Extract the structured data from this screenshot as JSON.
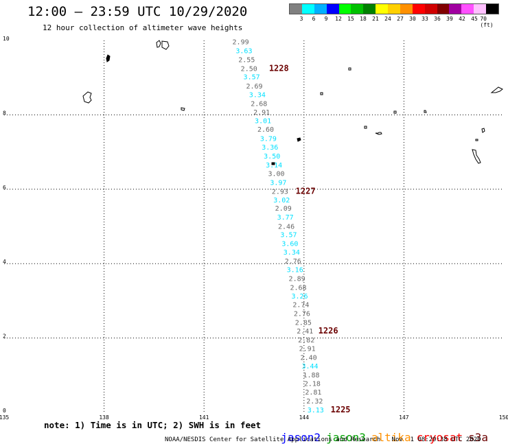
{
  "header": {
    "title": "12:00 – 23:59 UTC 10/29/2020",
    "subtitle": "12 hour collection of altimeter wave heights"
  },
  "legend": {
    "colors": [
      "#808080",
      "#00ffff",
      "#00b0ff",
      "#0000ff",
      "#00ff00",
      "#00c000",
      "#008000",
      "#ffff00",
      "#ffd000",
      "#ff9000",
      "#ff0000",
      "#d00000",
      "#800000",
      "#a000a0",
      "#ff50ff",
      "#ffc0ff",
      "#000000"
    ],
    "labels": [
      "3",
      "6",
      "9",
      "12",
      "15",
      "18",
      "21",
      "24",
      "27",
      "30",
      "33",
      "36",
      "39",
      "42",
      "45",
      "70 (ft)"
    ]
  },
  "map": {
    "x_range": [
      135,
      150
    ],
    "y_range": [
      0,
      10
    ],
    "x_ticks": [
      {
        "value": 135,
        "label": "135"
      },
      {
        "value": 138,
        "label": "138"
      },
      {
        "value": 141,
        "label": "141"
      },
      {
        "value": 144,
        "label": "144"
      },
      {
        "value": 147,
        "label": "147"
      },
      {
        "value": 150,
        "label": "150"
      }
    ],
    "y_ticks": [
      {
        "value": 0,
        "label": "0"
      },
      {
        "value": 2,
        "label": "2"
      },
      {
        "value": 4,
        "label": "4"
      },
      {
        "value": 6,
        "label": "6"
      },
      {
        "value": 8,
        "label": "8"
      },
      {
        "value": 10,
        "label": "10"
      }
    ],
    "series_colors": {
      "jason2": "#0000ff",
      "jason3": "#00a000",
      "altika": "#ff9000",
      "cryosat": "#ff0000",
      "s3a": "#6b0000"
    },
    "observations": [
      {
        "lon": 142.1,
        "lat": 9.9,
        "swh": "2.99",
        "color": "gray"
      },
      {
        "lon": 142.2,
        "lat": 9.66,
        "swh": "3.63",
        "color": "cyan"
      },
      {
        "lon": 142.28,
        "lat": 9.42,
        "swh": "2.55",
        "color": "gray"
      },
      {
        "lon": 142.35,
        "lat": 9.18,
        "swh": "2.50",
        "color": "gray"
      },
      {
        "lon": 142.43,
        "lat": 8.96,
        "swh": "3.57",
        "color": "cyan"
      },
      {
        "lon": 142.51,
        "lat": 8.71,
        "swh": "2.69",
        "color": "gray"
      },
      {
        "lon": 142.6,
        "lat": 8.48,
        "swh": "3.34",
        "color": "cyan"
      },
      {
        "lon": 142.65,
        "lat": 8.24,
        "swh": "2.68",
        "color": "gray"
      },
      {
        "lon": 142.73,
        "lat": 8.01,
        "swh": "2.91",
        "color": "gray"
      },
      {
        "lon": 142.77,
        "lat": 7.78,
        "swh": "3.01",
        "color": "cyan"
      },
      {
        "lon": 142.85,
        "lat": 7.55,
        "swh": "2.60",
        "color": "gray"
      },
      {
        "lon": 142.93,
        "lat": 7.3,
        "swh": "3.79",
        "color": "cyan"
      },
      {
        "lon": 142.98,
        "lat": 7.07,
        "swh": "3.36",
        "color": "cyan"
      },
      {
        "lon": 143.04,
        "lat": 6.83,
        "swh": "3.50",
        "color": "cyan"
      },
      {
        "lon": 143.1,
        "lat": 6.59,
        "swh": "3.14",
        "color": "cyan"
      },
      {
        "lon": 143.17,
        "lat": 6.36,
        "swh": "3.00",
        "color": "gray"
      },
      {
        "lon": 143.23,
        "lat": 6.12,
        "swh": "3.97",
        "color": "cyan"
      },
      {
        "lon": 143.28,
        "lat": 5.88,
        "swh": "2.93",
        "color": "gray"
      },
      {
        "lon": 143.33,
        "lat": 5.65,
        "swh": "3.02",
        "color": "cyan"
      },
      {
        "lon": 143.38,
        "lat": 5.42,
        "swh": "2.09",
        "color": "gray"
      },
      {
        "lon": 143.44,
        "lat": 5.18,
        "swh": "3.77",
        "color": "cyan"
      },
      {
        "lon": 143.47,
        "lat": 4.94,
        "swh": "2.46",
        "color": "gray"
      },
      {
        "lon": 143.54,
        "lat": 4.71,
        "swh": "3.57",
        "color": "cyan"
      },
      {
        "lon": 143.58,
        "lat": 4.47,
        "swh": "3.60",
        "color": "cyan"
      },
      {
        "lon": 143.63,
        "lat": 4.24,
        "swh": "3.34",
        "color": "cyan"
      },
      {
        "lon": 143.67,
        "lat": 4.0,
        "swh": "2.76",
        "color": "gray"
      },
      {
        "lon": 143.73,
        "lat": 3.77,
        "swh": "3.16",
        "color": "cyan"
      },
      {
        "lon": 143.79,
        "lat": 3.53,
        "swh": "2.89",
        "color": "gray"
      },
      {
        "lon": 143.83,
        "lat": 3.29,
        "swh": "2.68",
        "color": "gray"
      },
      {
        "lon": 143.87,
        "lat": 3.06,
        "swh": "3.26",
        "color": "cyan"
      },
      {
        "lon": 143.91,
        "lat": 2.83,
        "swh": "2.74",
        "color": "gray"
      },
      {
        "lon": 143.94,
        "lat": 2.59,
        "swh": "2.76",
        "color": "gray"
      },
      {
        "lon": 143.98,
        "lat": 2.35,
        "swh": "2.85",
        "color": "gray"
      },
      {
        "lon": 144.03,
        "lat": 2.12,
        "swh": "2.41",
        "color": "gray"
      },
      {
        "lon": 144.07,
        "lat": 1.88,
        "swh": "2.82",
        "color": "gray"
      },
      {
        "lon": 144.1,
        "lat": 1.65,
        "swh": "2.91",
        "color": "gray"
      },
      {
        "lon": 144.14,
        "lat": 1.41,
        "swh": "2.40",
        "color": "gray"
      },
      {
        "lon": 144.18,
        "lat": 1.18,
        "swh": "3.44",
        "color": "cyan"
      },
      {
        "lon": 144.22,
        "lat": 0.94,
        "swh": "1.88",
        "color": "gray"
      },
      {
        "lon": 144.25,
        "lat": 0.71,
        "swh": "2.18",
        "color": "gray"
      },
      {
        "lon": 144.28,
        "lat": 0.48,
        "swh": "2.81",
        "color": "gray"
      },
      {
        "lon": 144.32,
        "lat": 0.24,
        "swh": "2.32",
        "color": "gray"
      },
      {
        "lon": 144.35,
        "lat": 0.0,
        "swh": "3.13",
        "color": "cyan"
      }
    ],
    "pass_labels": [
      {
        "text": "1228",
        "lon": 142.95,
        "lat": 9.18
      },
      {
        "text": "1227",
        "lon": 143.75,
        "lat": 5.88
      },
      {
        "text": "1226",
        "lon": 144.43,
        "lat": 2.12
      },
      {
        "text": "1225",
        "lon": 144.8,
        "lat": 0.0
      }
    ]
  },
  "note": "note: 1) Time is in UTC; 2) SWH is in feet",
  "satellites": [
    {
      "name": "jason2",
      "color": "#0000ff"
    },
    {
      "name": "jason3",
      "color": "#00a000"
    },
    {
      "name": "altika",
      "color": "#ff9000"
    },
    {
      "name": "cryosat",
      "color": "#ff0000"
    },
    {
      "name": "s3a",
      "color": "#6b0000"
    }
  ],
  "footer": "NOAA/NESDIS Center for Satellite Applications and Research   Nov  1 08:29:38 UTC 2020"
}
